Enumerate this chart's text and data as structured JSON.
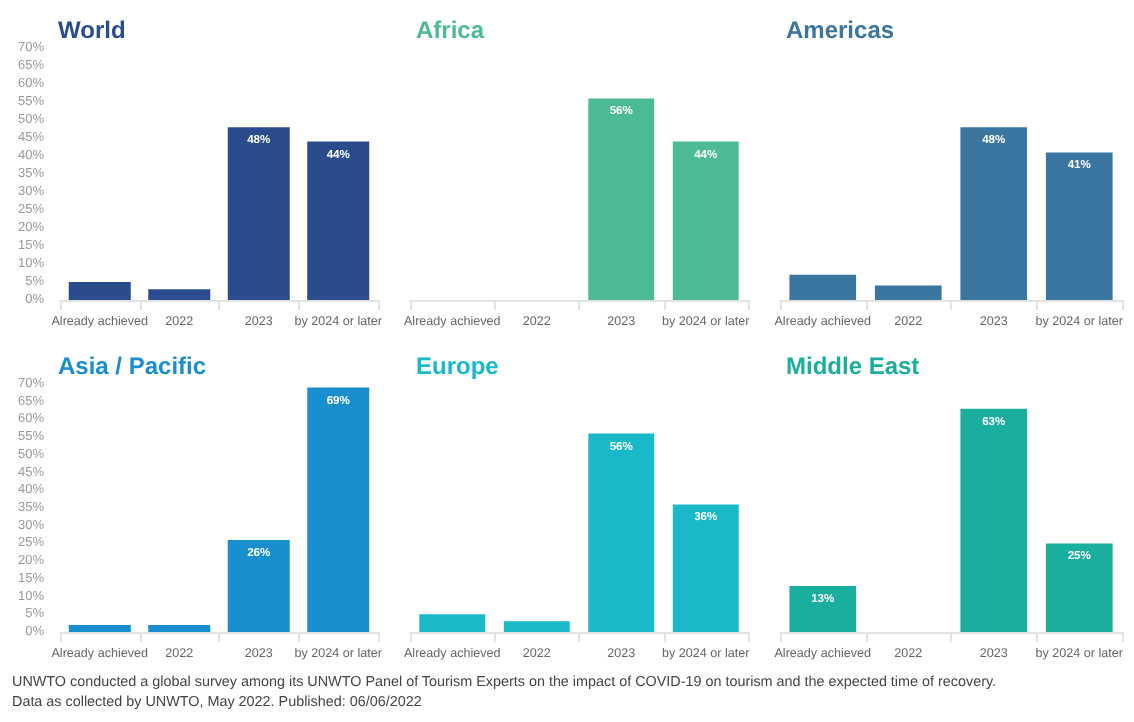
{
  "chart_data": [
    {
      "type": "bar",
      "title": "World",
      "categories": [
        "Already achieved",
        "2022",
        "2023",
        "by 2024 or later"
      ],
      "values": [
        5,
        3,
        48,
        44
      ],
      "value_labels": [
        null,
        null,
        "48%",
        "44%"
      ],
      "color": "#2b4c8c",
      "ylim": [
        0,
        70
      ],
      "yticks": [
        {
          "value": 0,
          "label": "0%"
        },
        {
          "value": 5,
          "label": "5%"
        },
        {
          "value": 10,
          "label": "10%"
        },
        {
          "value": 15,
          "label": "15%"
        },
        {
          "value": 20,
          "label": "20%"
        },
        {
          "value": 25,
          "label": "25%"
        },
        {
          "value": 30,
          "label": "30%"
        },
        {
          "value": 35,
          "label": "35%"
        },
        {
          "value": 40,
          "label": "40%"
        },
        {
          "value": 45,
          "label": "45%"
        },
        {
          "value": 50,
          "label": "50%"
        },
        {
          "value": 55,
          "label": "55%"
        },
        {
          "value": 60,
          "label": "60%"
        },
        {
          "value": 65,
          "label": "65%"
        },
        {
          "value": 70,
          "label": "70%"
        }
      ],
      "grid": false
    },
    {
      "type": "bar",
      "title": "Africa",
      "categories": [
        "Already achieved",
        "2022",
        "2023",
        "by 2024 or later"
      ],
      "values": [
        null,
        null,
        56,
        44
      ],
      "value_labels": [
        null,
        null,
        "56%",
        "44%"
      ],
      "color": "#4cbb95",
      "ylim": [
        0,
        70
      ],
      "tick_labels": "x",
      "grid": false
    },
    {
      "type": "bar",
      "title": "Americas",
      "categories": [
        "Already achieved",
        "2022",
        "2023",
        "by 2024 or later"
      ],
      "values": [
        7,
        4,
        48,
        41
      ],
      "value_labels": [
        null,
        null,
        "48%",
        "41%"
      ],
      "color": "#3a76a0",
      "ylim": [
        0,
        70
      ],
      "tick_labels": "x",
      "grid": false
    },
    {
      "type": "bar",
      "title": "Asia / Pacific",
      "categories": [
        "Already achieved",
        "2022",
        "2023",
        "by 2024 or later"
      ],
      "values": [
        2,
        2,
        26,
        69
      ],
      "value_labels": [
        null,
        null,
        "26%",
        "69%"
      ],
      "color": "#1a8fd0",
      "ylim": [
        0,
        70
      ],
      "yticks": [
        {
          "value": 0,
          "label": "0%"
        },
        {
          "value": 5,
          "label": "5%"
        },
        {
          "value": 10,
          "label": "10%"
        },
        {
          "value": 15,
          "label": "15%"
        },
        {
          "value": 20,
          "label": "20%"
        },
        {
          "value": 25,
          "label": "25%"
        },
        {
          "value": 30,
          "label": "30%"
        },
        {
          "value": 35,
          "label": "35%"
        },
        {
          "value": 40,
          "label": "40%"
        },
        {
          "value": 45,
          "label": "45%"
        },
        {
          "value": 50,
          "label": "50%"
        },
        {
          "value": 55,
          "label": "55%"
        },
        {
          "value": 60,
          "label": "60%"
        },
        {
          "value": 65,
          "label": "65%"
        },
        {
          "value": 70,
          "label": "70%"
        }
      ],
      "grid": false,
      "annotations": [
        "UNWTO conducted a global survey among its UNWTO Panel of Tourism Experts on the impact of COVID-19 on tourism and the expected time of recovery.",
        "Data as collected by UNWTO, May 2022. Published: 06/06/2022"
      ]
    },
    {
      "type": "bar",
      "title": "Europe",
      "categories": [
        "Already achieved",
        "2022",
        "2023",
        "by 2024 or later"
      ],
      "values": [
        5,
        3,
        56,
        36
      ],
      "value_labels": [
        null,
        null,
        "56%",
        "36%"
      ],
      "color": "#19b9c9",
      "ylim": [
        0,
        70
      ],
      "tick_labels": "x",
      "grid": false
    },
    {
      "type": "bar",
      "title": "Middle East",
      "categories": [
        "Already achieved",
        "2022",
        "2023",
        "by 2024 or later"
      ],
      "values": [
        13,
        null,
        63,
        25
      ],
      "value_labels": [
        "13%",
        null,
        "63%",
        "25%"
      ],
      "color": "#1aae9f",
      "ylim": [
        0,
        70
      ],
      "tick_labels": "x",
      "grid": false
    }
  ]
}
